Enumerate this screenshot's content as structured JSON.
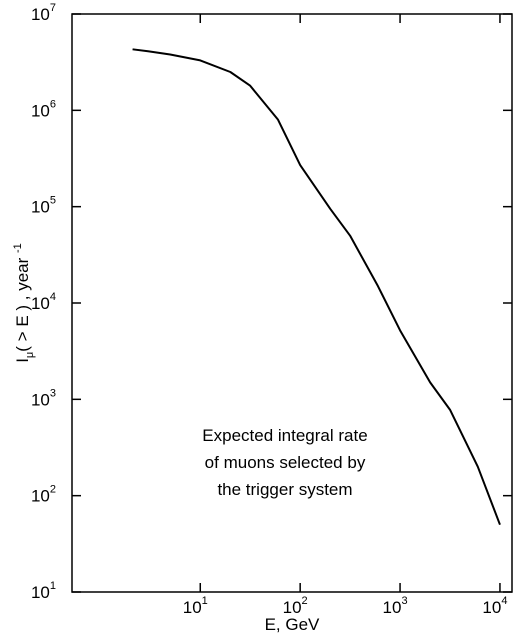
{
  "chart_data": {
    "type": "line",
    "x_label": "E, GeV",
    "y_label": {
      "main": "I",
      "sub": "μ",
      "rest": "( > E ) ,  year ",
      "sup": "-1"
    },
    "annotation": [
      "Expected integral rate",
      "of muons selected by",
      "the trigger system"
    ],
    "x": [
      2.1,
      3,
      5,
      10,
      20,
      31.6,
      60,
      100,
      200,
      316,
      600,
      1000,
      2000,
      3162,
      6000,
      10000
    ],
    "values": [
      4300000,
      4100000,
      3800000,
      3300000,
      2500000,
      1800000,
      800000,
      270000,
      95000,
      50000,
      15000,
      5200,
      1500,
      780,
      200,
      50
    ],
    "color": "#000000",
    "xlog": true,
    "ylog": true,
    "xlim": [
      0.52,
      13200
    ],
    "ylim": [
      10,
      10000000
    ],
    "xticks": [
      {
        "value": 10,
        "label": "10",
        "sup": "1"
      },
      {
        "value": 100,
        "label": "10",
        "sup": "2"
      },
      {
        "value": 1000,
        "label": "10",
        "sup": "3"
      },
      {
        "value": 10000,
        "label": "10",
        "sup": "4"
      }
    ],
    "yticks": [
      {
        "value": 10,
        "label": "10",
        "sup": "1"
      },
      {
        "value": 100,
        "label": "10",
        "sup": "2"
      },
      {
        "value": 1000,
        "label": "10",
        "sup": "3"
      },
      {
        "value": 10000,
        "label": "10",
        "sup": "4"
      },
      {
        "value": 100000,
        "label": "10",
        "sup": "5"
      },
      {
        "value": 1000000,
        "label": "10",
        "sup": "6"
      },
      {
        "value": 10000000,
        "label": "10",
        "sup": "7"
      }
    ]
  }
}
